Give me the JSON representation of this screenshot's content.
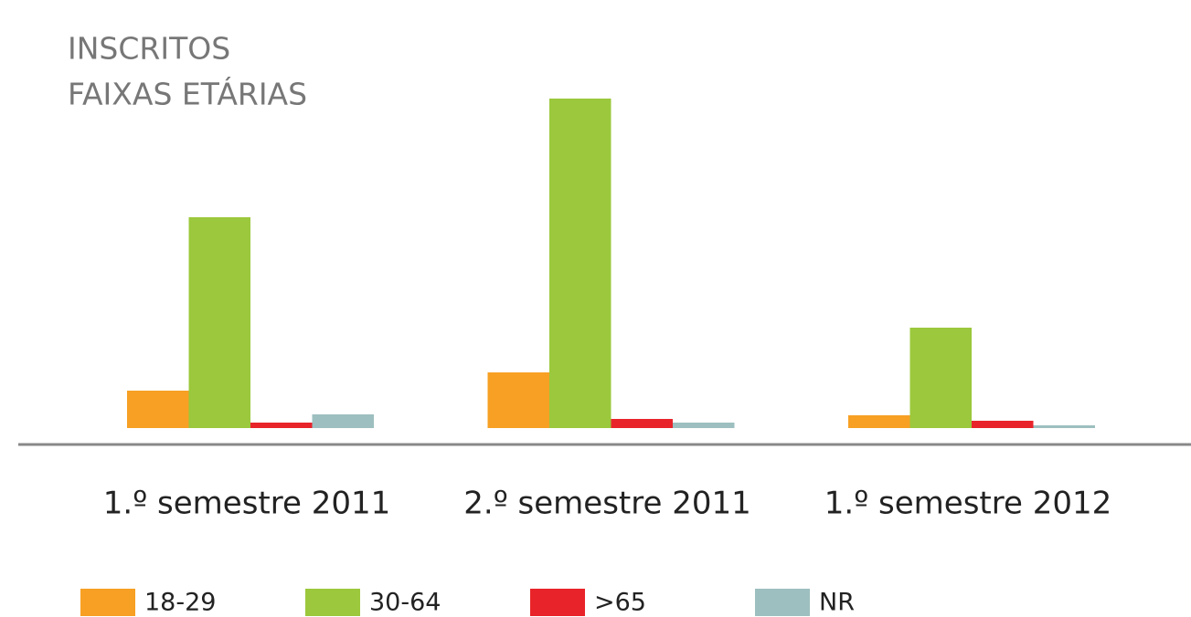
{
  "chart_data": {
    "type": "bar",
    "title": "INSCRITOS",
    "subtitle": "FAIXAS ETÁRIAS",
    "categories": [
      "1.º semestre 2011",
      "2.º semestre 2011",
      "1.º semestre 2012"
    ],
    "series": [
      {
        "name": "18-29",
        "color": "#f7a024",
        "values": [
          41,
          61,
          14
        ]
      },
      {
        "name": "30-64",
        "color": "#9bc83c",
        "values": [
          231,
          361,
          110
        ]
      },
      {
        "name": ">65",
        "color": "#e8242a",
        "values": [
          6,
          10,
          8
        ]
      },
      {
        "name": "NR",
        "color": "#9dbfbf",
        "values": [
          15,
          6,
          3
        ]
      }
    ],
    "ylim": [
      0,
      361
    ],
    "legend": "bottom"
  }
}
